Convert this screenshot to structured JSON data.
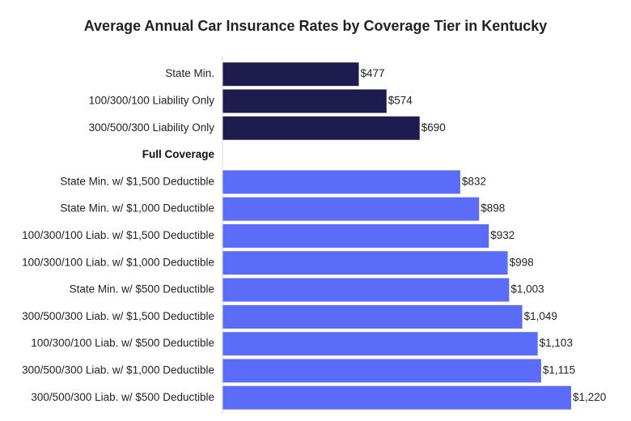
{
  "chart_data": {
    "type": "bar",
    "orientation": "horizontal",
    "title": "Average Annual Car Insurance Rates by Coverage Tier in Kentucky",
    "xlabel": "",
    "ylabel": "",
    "xlim": [
      0,
      1220
    ],
    "grid": false,
    "legend": "none",
    "value_prefix": "$",
    "groups": [
      {
        "name": "",
        "color": "#1e1b4f",
        "items": [
          {
            "label": "State Min.",
            "value": 477
          },
          {
            "label": "100/300/100 Liability Only",
            "value": 574
          },
          {
            "label": "300/500/300 Liability Only",
            "value": 690
          }
        ]
      },
      {
        "name": "Full Coverage",
        "color": "#5b6df8",
        "items": [
          {
            "label": "State Min. w/ $1,500 Deductible",
            "value": 832
          },
          {
            "label": "State Min. w/ $1,000 Deductible",
            "value": 898
          },
          {
            "label": "100/300/100 Liab. w/ $1,500 Deductible",
            "value": 932
          },
          {
            "label": "100/300/100 Liab. w/ $1,000 Deductible",
            "value": 998
          },
          {
            "label": "State Min. w/ $500 Deductible",
            "value": 1003
          },
          {
            "label": "300/500/300 Liab. w/ $1,500 Deductible",
            "value": 1049
          },
          {
            "label": "100/300/100 Liab. w/ $500 Deductible",
            "value": 1103
          },
          {
            "label": "300/500/300 Liab. w/ $1,000 Deductible",
            "value": 1115
          },
          {
            "label": "300/500/300 Liab. w/ $500 Deductible",
            "value": 1220
          }
        ]
      }
    ]
  }
}
